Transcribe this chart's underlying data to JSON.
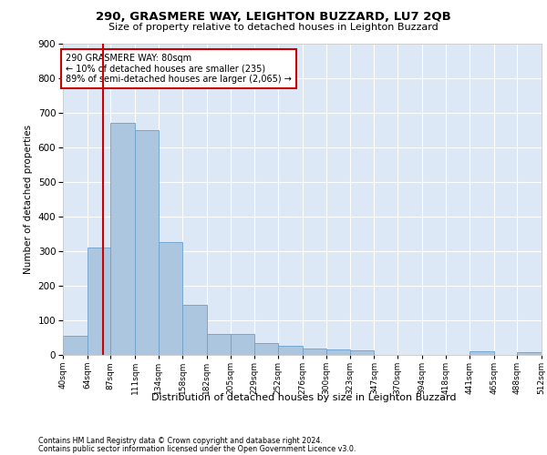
{
  "title": "290, GRASMERE WAY, LEIGHTON BUZZARD, LU7 2QB",
  "subtitle": "Size of property relative to detached houses in Leighton Buzzard",
  "xlabel": "Distribution of detached houses by size in Leighton Buzzard",
  "ylabel": "Number of detached properties",
  "footer_line1": "Contains HM Land Registry data © Crown copyright and database right 2024.",
  "footer_line2": "Contains public sector information licensed under the Open Government Licence v3.0.",
  "annotation_line1": "290 GRASMERE WAY: 80sqm",
  "annotation_line2": "← 10% of detached houses are smaller (235)",
  "annotation_line3": "89% of semi-detached houses are larger (2,065) →",
  "property_size": 80,
  "bins": [
    40,
    64,
    87,
    111,
    134,
    158,
    182,
    205,
    229,
    252,
    276,
    300,
    323,
    347,
    370,
    394,
    418,
    441,
    465,
    488,
    512
  ],
  "bar_heights": [
    55,
    310,
    670,
    650,
    325,
    145,
    60,
    60,
    35,
    25,
    18,
    15,
    13,
    0,
    0,
    0,
    0,
    10,
    0,
    8
  ],
  "bar_color": "#adc6e0",
  "bar_edge_color": "#6aa0cc",
  "red_line_color": "#cc0000",
  "annotation_box_edge": "#cc0000",
  "background_color": "#ffffff",
  "plot_bg_color": "#dce8f5",
  "grid_color": "#ffffff",
  "ylim": [
    0,
    900
  ],
  "yticks": [
    0,
    100,
    200,
    300,
    400,
    500,
    600,
    700,
    800,
    900
  ]
}
